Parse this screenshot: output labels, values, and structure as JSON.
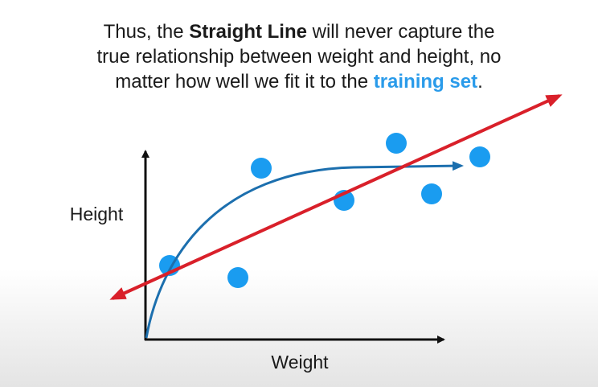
{
  "caption": {
    "lines": [
      [
        "Thus, the ",
        "Straight Line",
        " will never capture the"
      ],
      [
        "true relationship between weight and height, no"
      ],
      [
        "matter how well we fit it to the ",
        "training set",
        "."
      ]
    ]
  },
  "diagram": {
    "y_axis_label": "Height",
    "x_axis_label": "Weight"
  }
}
